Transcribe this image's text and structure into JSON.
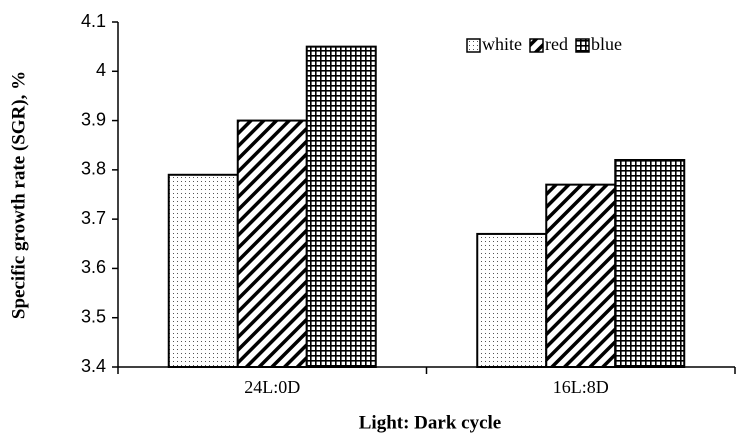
{
  "chart_data": {
    "type": "bar",
    "x_label": "Light: Dark  cycle",
    "y_label": "Specific growth rate (SGR), %",
    "categories": [
      "24L:0D",
      "16L:8D"
    ],
    "series": [
      {
        "name": "white",
        "color": "#000000",
        "pattern": "dots",
        "values": [
          3.79,
          3.67
        ]
      },
      {
        "name": "red",
        "color": "#000000",
        "pattern": "diagonal",
        "values": [
          3.9,
          3.77
        ]
      },
      {
        "name": "blue",
        "color": "#000000",
        "pattern": "grid",
        "values": [
          4.05,
          3.82
        ]
      }
    ],
    "ylim": [
      3.4,
      4.1
    ],
    "yticks": [
      3.4,
      3.5,
      3.6,
      3.7,
      3.8,
      3.9,
      4,
      4.1
    ],
    "grid": false,
    "legend": "top-right"
  }
}
